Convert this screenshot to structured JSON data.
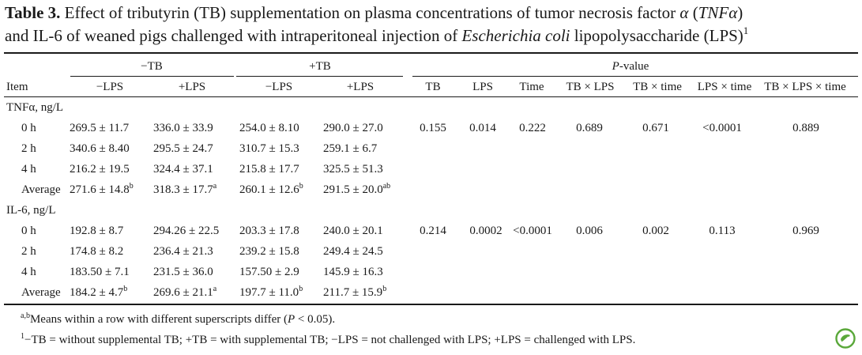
{
  "caption": {
    "label": "Table 3.",
    "line1_rest": " Effect of tributyrin (TB) supplementation on plasma concentrations of tumor necrosis factor ",
    "line1_alpha": "α",
    "line1_open": " (",
    "line1_tnf": "TNFα",
    "line1_close": ")",
    "line2_pre": "and IL-6 of weaned pigs challenged with intraperitoneal injection of ",
    "line2_ecoli": "Escherichia coli",
    "line2_post": " lipopolysaccharide (LPS)",
    "line2_sup": "1"
  },
  "header": {
    "minus_tb": "−TB",
    "plus_tb": "+TB",
    "pvalue_p": "P",
    "pvalue_rest": "-value",
    "item": "Item",
    "minus_lps": "−LPS",
    "plus_lps": "+LPS",
    "pcols": [
      "TB",
      "LPS",
      "Time",
      "TB × LPS",
      "TB × time",
      "LPS × time",
      "TB × LPS × time"
    ]
  },
  "sections": [
    {
      "label": "TNFα, ng/L",
      "rows": [
        {
          "label": "0 h",
          "vals": [
            "269.5 ± 11.7",
            "336.0 ± 33.9",
            "254.0 ± 8.10",
            "290.0 ± 27.0"
          ],
          "sups": [
            "",
            "",
            "",
            ""
          ],
          "p": [
            "0.155",
            "0.014",
            "0.222",
            "0.689",
            "0.671",
            "<0.0001",
            "0.889"
          ]
        },
        {
          "label": "2 h",
          "vals": [
            "340.6 ± 8.40",
            "295.5 ± 24.7",
            "310.7 ± 15.3",
            "259.1 ± 6.7"
          ],
          "sups": [
            "",
            "",
            "",
            ""
          ]
        },
        {
          "label": "4 h",
          "vals": [
            "216.2 ± 19.5",
            "324.4 ± 37.1",
            "215.8 ± 17.7",
            "325.5 ± 51.3"
          ],
          "sups": [
            "",
            "",
            "",
            ""
          ]
        },
        {
          "label": "Average",
          "vals": [
            "271.6 ± 14.8",
            "318.3 ± 17.7",
            "260.1 ± 12.6",
            "291.5 ± 20.0"
          ],
          "sups": [
            "b",
            "a",
            "b",
            "ab"
          ]
        }
      ]
    },
    {
      "label": "IL-6, ng/L",
      "rows": [
        {
          "label": "0 h",
          "vals": [
            "192.8 ± 8.7",
            "294.26 ± 22.5",
            "203.3 ± 17.8",
            "240.0 ± 20.1"
          ],
          "sups": [
            "",
            "",
            "",
            ""
          ],
          "p": [
            "0.214",
            "0.0002",
            "<0.0001",
            "0.006",
            "0.002",
            "0.113",
            "0.969"
          ]
        },
        {
          "label": "2 h",
          "vals": [
            "174.8 ± 8.2",
            "236.4 ± 21.3",
            "239.2 ± 15.8",
            "249.4 ± 24.5"
          ],
          "sups": [
            "",
            "",
            "",
            ""
          ]
        },
        {
          "label": "4 h",
          "vals": [
            "183.50 ± 7.1",
            "231.5 ± 36.0",
            "157.50 ± 2.9",
            "145.9 ± 16.3"
          ],
          "sups": [
            "",
            "",
            "",
            ""
          ]
        },
        {
          "label": "Average",
          "vals": [
            "184.2 ± 4.7",
            "269.6 ± 21.1",
            "197.7 ± 11.0",
            "211.7 ± 15.9"
          ],
          "sups": [
            "b",
            "a",
            "b",
            "b"
          ]
        }
      ]
    }
  ],
  "footnotes": {
    "fn1_sup": "a,b",
    "fn1_pre": "Means within a row with different superscripts differ (",
    "fn1_p": "P",
    "fn1_post": " < 0.05).",
    "fn2_sup": "1",
    "fn2_text": "−TB = without supplemental TB; +TB = with supplemental TB; −LPS = not challenged with LPS; +LPS = challenged with LPS."
  },
  "colors": {
    "text": "#1a1a1a",
    "logo": "#5aa83a"
  },
  "icons": {
    "logo": "publisher-logo-icon"
  }
}
